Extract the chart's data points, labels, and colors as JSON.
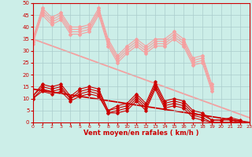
{
  "x": [
    0,
    1,
    2,
    3,
    4,
    5,
    6,
    7,
    8,
    9,
    10,
    11,
    12,
    13,
    14,
    15,
    16,
    17,
    18,
    19,
    20,
    21,
    22,
    23
  ],
  "gust_lines": [
    [
      35,
      48,
      44,
      46,
      40,
      40,
      41,
      48,
      35,
      28,
      32,
      35,
      32,
      35,
      35,
      38,
      35,
      27,
      28,
      16,
      null,
      null,
      null,
      null
    ],
    [
      34,
      47,
      43,
      45,
      39,
      39,
      40,
      47,
      34,
      27,
      31,
      34,
      31,
      34,
      34,
      37,
      34,
      26,
      27,
      15,
      null,
      null,
      null,
      null
    ],
    [
      34,
      46,
      42,
      44,
      38,
      38,
      39,
      46,
      33,
      26,
      30,
      33,
      30,
      33,
      33,
      36,
      33,
      25,
      26,
      14,
      null,
      null,
      null,
      null
    ],
    [
      33,
      45,
      41,
      43,
      37,
      37,
      38,
      45,
      32,
      25,
      29,
      32,
      29,
      32,
      32,
      35,
      32,
      24,
      25,
      13,
      null,
      null,
      null,
      null
    ]
  ],
  "mean_lines": [
    [
      11,
      16,
      15,
      16,
      11,
      14,
      15,
      14,
      5,
      7,
      8,
      12,
      8,
      17,
      9,
      10,
      9,
      5,
      4,
      1,
      1,
      2,
      1,
      null
    ],
    [
      11,
      15,
      14,
      15,
      10,
      13,
      14,
      13,
      5,
      6,
      7,
      11,
      7,
      16,
      8,
      9,
      8,
      4,
      3,
      1,
      1,
      1,
      0,
      null
    ],
    [
      10,
      14,
      13,
      14,
      10,
      12,
      13,
      12,
      4,
      5,
      6,
      10,
      6,
      15,
      7,
      8,
      7,
      3,
      2,
      0,
      0,
      0,
      0,
      null
    ],
    [
      10,
      13,
      12,
      13,
      9,
      11,
      12,
      11,
      4,
      4,
      5,
      9,
      5,
      14,
      6,
      7,
      6,
      2,
      1,
      0,
      0,
      0,
      0,
      null
    ]
  ],
  "gust_trend_x": [
    0,
    23
  ],
  "gust_trend_y": [
    35,
    2
  ],
  "mean_trend_x": [
    0,
    23
  ],
  "mean_trend_y": [
    14,
    0
  ],
  "light_pink": "#f5a0a0",
  "dark_red": "#cc0000",
  "bg_color": "#cceee8",
  "grid_color": "#aacccc",
  "xlabel": "Vent moyen/en rafales ( km/h )",
  "ylim": [
    0,
    50
  ],
  "xlim": [
    0,
    23
  ]
}
